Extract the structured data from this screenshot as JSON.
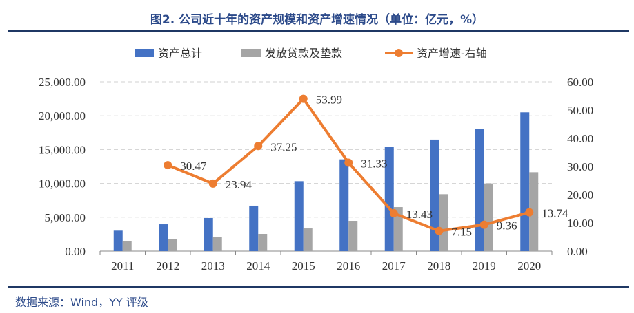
{
  "chart_data": {
    "type": "bar",
    "title": "图2. 公司近十年的资产规模和资产增速情况（单位：亿元，%）",
    "categories": [
      "2011",
      "2012",
      "2013",
      "2014",
      "2015",
      "2016",
      "2017",
      "2018",
      "2019",
      "2020"
    ],
    "series": [
      {
        "name": "资产总计",
        "type": "bar",
        "axis": "left",
        "color": "#4472C4",
        "values": [
          3020,
          3960,
          4880,
          6710,
          10330,
          13550,
          15350,
          16470,
          17990,
          20500
        ]
      },
      {
        "name": "发放贷款及垫款",
        "type": "bar",
        "axis": "left",
        "color": "#A5A5A5",
        "values": [
          1520,
          1800,
          2130,
          2540,
          3350,
          4470,
          6500,
          8400,
          9990,
          11650
        ]
      },
      {
        "name": "资产增速-右轴",
        "type": "line",
        "axis": "right",
        "color": "#ED7D31",
        "values": [
          null,
          30.47,
          23.94,
          37.25,
          53.99,
          31.33,
          13.43,
          7.15,
          9.36,
          13.74
        ],
        "labels": [
          "",
          "30.47",
          "23.94",
          "37.25",
          "53.99",
          "31.33",
          "13.43",
          "7.15",
          "9.36",
          "13.74"
        ]
      }
    ],
    "y_left": {
      "range": [
        0,
        25000
      ],
      "ticks": [
        "0.00",
        "5,000.00",
        "10,000.00",
        "15,000.00",
        "20,000.00",
        "25,000.00"
      ]
    },
    "y_right": {
      "range": [
        0,
        60
      ],
      "ticks": [
        "0.00",
        "10.00",
        "20.00",
        "30.00",
        "40.00",
        "50.00",
        "60.00"
      ]
    },
    "grid": true,
    "legend": "top"
  },
  "source": "数据来源：Wind，YY 评级"
}
